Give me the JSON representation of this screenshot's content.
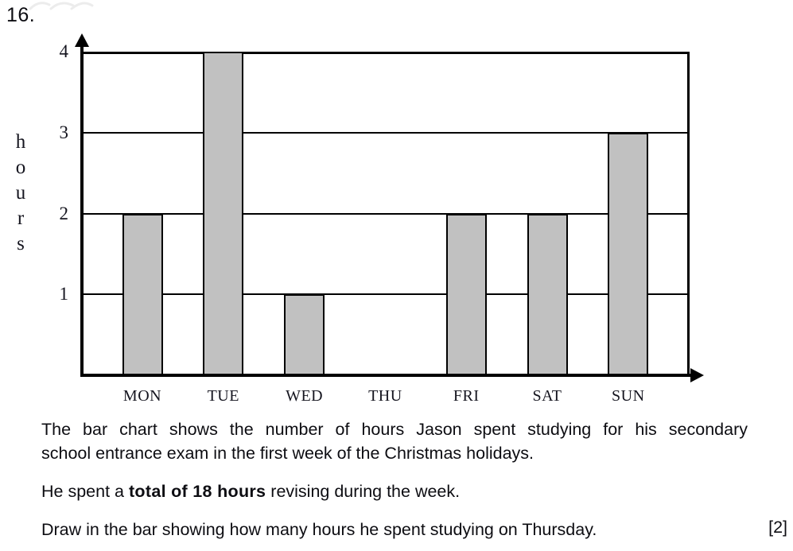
{
  "question": {
    "number": "16.",
    "marks": "[2]"
  },
  "chart_data": {
    "type": "bar",
    "title": "",
    "categories": [
      "MON",
      "TUE",
      "WED",
      "THU",
      "FRI",
      "SAT",
      "SUN"
    ],
    "values": [
      2,
      4,
      1,
      null,
      2,
      2,
      3
    ],
    "xlabel": "",
    "ylabel": "hours",
    "yticks": [
      1,
      2,
      3,
      4
    ],
    "ylim": [
      0,
      4
    ],
    "grid": "horizontal",
    "legend": "none",
    "bar_color": "#c1c1c1",
    "bar_border_color": "#000000"
  },
  "text": {
    "para1_line1": "The bar chart shows the number of hours Jason spent studying for his secondary",
    "para1_line2": "school entrance exam in the first week of the Christmas holidays.",
    "para2_prefix": "He spent a ",
    "para2_bold": "total of 18 hours",
    "para2_suffix": " revising during the week.",
    "para3": "Draw in the bar showing how many hours he spent studying on Thursday."
  }
}
